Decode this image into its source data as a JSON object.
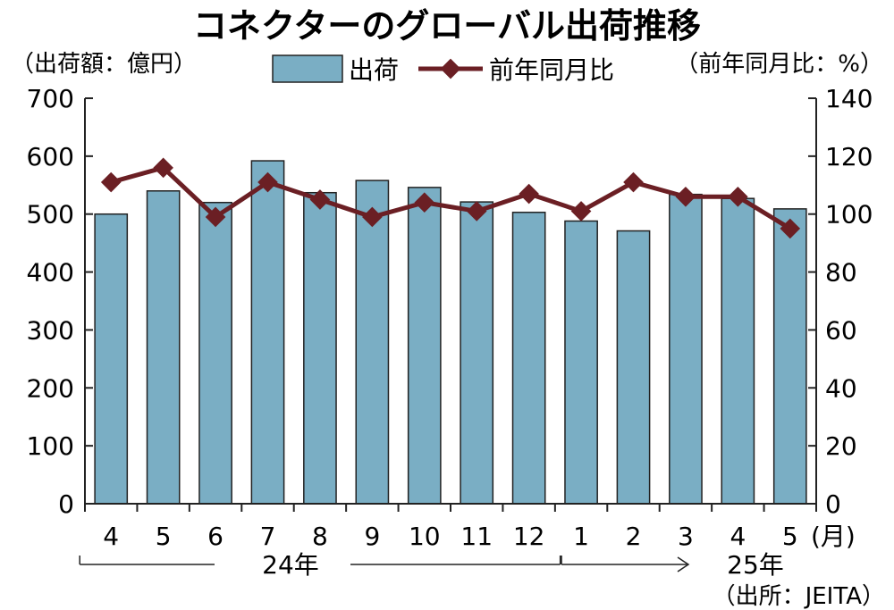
{
  "chart_data": {
    "type": "bar+line",
    "title": "コネクターのグローバル出荷推移",
    "left_axis_label": "（出荷額：億円）",
    "right_axis_label": "（前年同月比：%）",
    "categories": [
      "4",
      "5",
      "6",
      "7",
      "8",
      "9",
      "10",
      "11",
      "12",
      "1",
      "2",
      "3",
      "4",
      "5"
    ],
    "month_unit": "(月)",
    "year_groups": [
      {
        "label": "24年",
        "from": 0,
        "to": 8
      },
      {
        "label": "25年",
        "from": 9,
        "to": 13
      }
    ],
    "y_left": {
      "min": 0,
      "max": 700,
      "ticks": [
        0,
        100,
        200,
        300,
        400,
        500,
        600,
        700
      ]
    },
    "y_right": {
      "min": 0,
      "max": 140,
      "ticks": [
        0,
        20,
        40,
        60,
        80,
        100,
        120,
        140
      ]
    },
    "series": [
      {
        "name": "出荷",
        "kind": "bar",
        "axis": "left",
        "color": "#7aaec4",
        "values": [
          500,
          540,
          520,
          592,
          537,
          558,
          546,
          521,
          503,
          488,
          471,
          534,
          527,
          509
        ]
      },
      {
        "name": "前年同月比",
        "kind": "line",
        "axis": "right",
        "color": "#6b1f24",
        "values": [
          111,
          116,
          99,
          111,
          105,
          99,
          104,
          101,
          107,
          101,
          111,
          106,
          106,
          95
        ]
      }
    ],
    "source": "（出所：JEITA）"
  }
}
